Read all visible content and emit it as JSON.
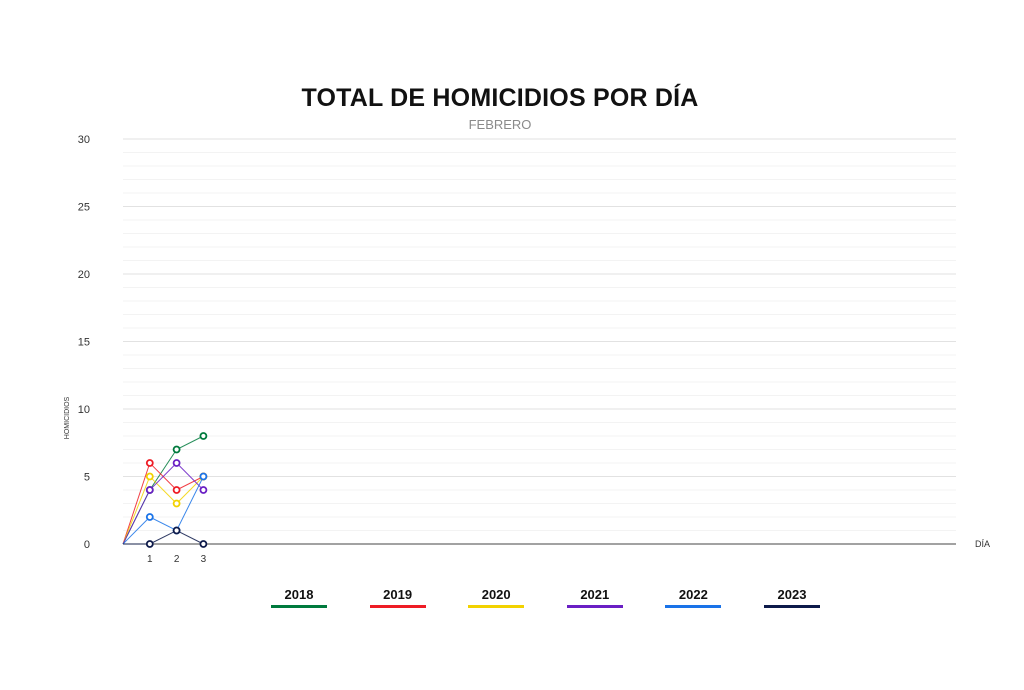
{
  "chart_data": {
    "type": "line",
    "title": "TOTAL DE HOMICIDIOS POR DÍA",
    "subtitle": "FEBRERO",
    "xlabel": "DÍA",
    "ylabel": "HOMICIDIOS",
    "ylim": [
      0,
      30
    ],
    "y_ticks": [
      0,
      5,
      10,
      15,
      20,
      25,
      30
    ],
    "x_range": [
      0,
      31
    ],
    "x": [
      1,
      2,
      3
    ],
    "grid": true,
    "legend_position": "bottom",
    "series": [
      {
        "name": "2018",
        "color": "#007a3d",
        "values": [
          4,
          7,
          8
        ]
      },
      {
        "name": "2019",
        "color": "#ee1c25",
        "values": [
          6,
          4,
          5
        ]
      },
      {
        "name": "2020",
        "color": "#f2d200",
        "values": [
          5,
          3,
          5
        ]
      },
      {
        "name": "2021",
        "color": "#6a1fc4",
        "values": [
          4,
          6,
          4
        ]
      },
      {
        "name": "2022",
        "color": "#1a73e8",
        "values": [
          2,
          1,
          5
        ]
      },
      {
        "name": "2023",
        "color": "#0d1a4a",
        "values": [
          0,
          1,
          0
        ]
      }
    ]
  }
}
